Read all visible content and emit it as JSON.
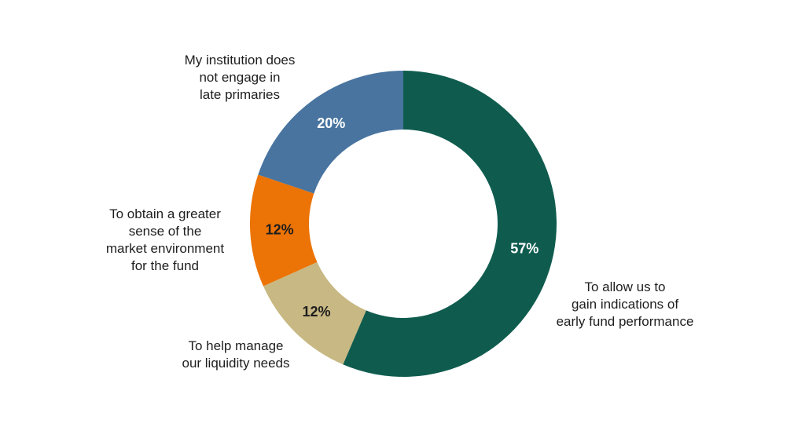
{
  "chart_data": {
    "type": "pie",
    "subtype": "donut",
    "title": "",
    "slices": [
      {
        "label": "To allow us to\ngain indications of\nearly fund performance",
        "value": 57,
        "value_label": "57%",
        "color": "#0f5c4f",
        "text_color": "#ffffff"
      },
      {
        "label": "To help manage\nour liquidity needs",
        "value": 12,
        "value_label": "12%",
        "color": "#c8b883",
        "text_color": "#1e1e1e"
      },
      {
        "label": "To obtain a greater\nsense of the\nmarket environment\nfor the fund",
        "value": 12,
        "value_label": "12%",
        "color": "#ec7305",
        "text_color": "#1e1e1e"
      },
      {
        "label": "My institution does\nnot engage in\nlate primaries",
        "value": 20,
        "value_label": "20%",
        "color": "#48749f",
        "text_color": "#ffffff"
      }
    ]
  }
}
